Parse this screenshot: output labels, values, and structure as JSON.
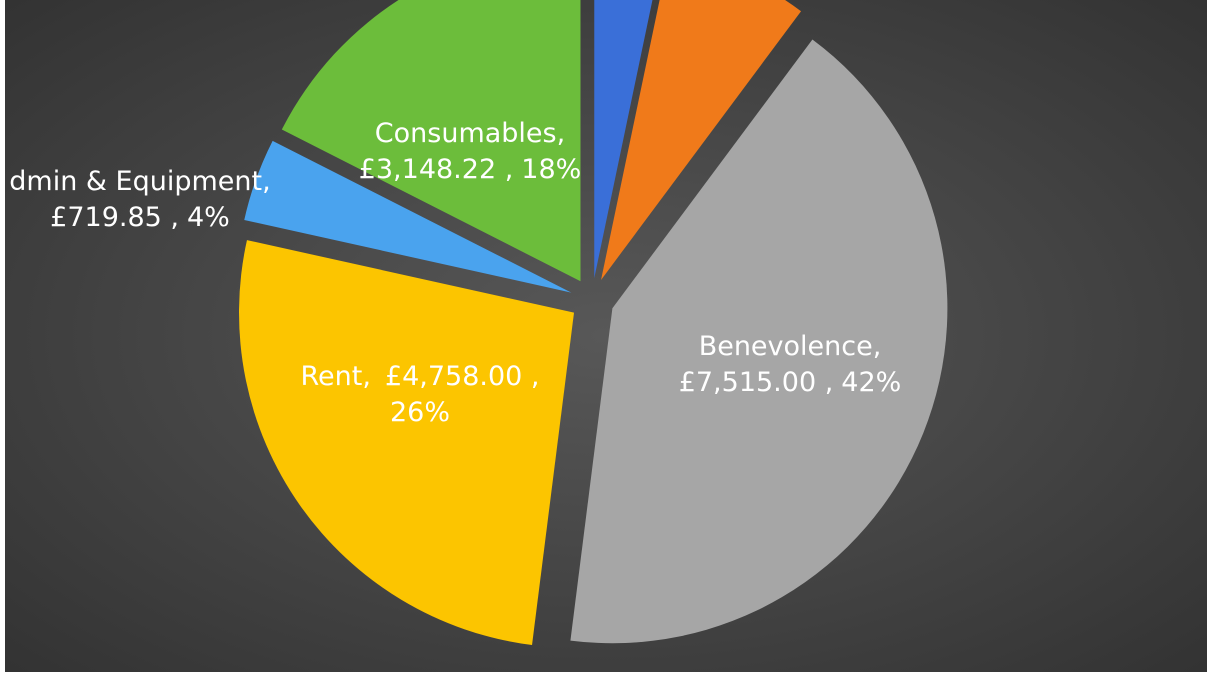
{
  "chart_data": {
    "type": "pie",
    "categories": [
      null,
      null,
      "Benevolence,",
      "Rent,",
      "dmin & Equipment,",
      "Consumables,"
    ],
    "values": [
      590,
      1240,
      7515.0,
      4758.0,
      719.85,
      3148.22
    ],
    "value_labels": [
      null,
      null,
      "£7,515.00 ,",
      "£4,758.00 ,",
      "£719.85 ,",
      "£3,148.22 ,"
    ],
    "percent_labels": [
      null,
      null,
      "42%",
      "26%",
      "4%",
      "18%"
    ],
    "colors": [
      "#3a6fd8",
      "#f07a1a",
      "#a6a6a6",
      "#fcc500",
      "#4aa3ee",
      "#6cbd3b"
    ]
  }
}
